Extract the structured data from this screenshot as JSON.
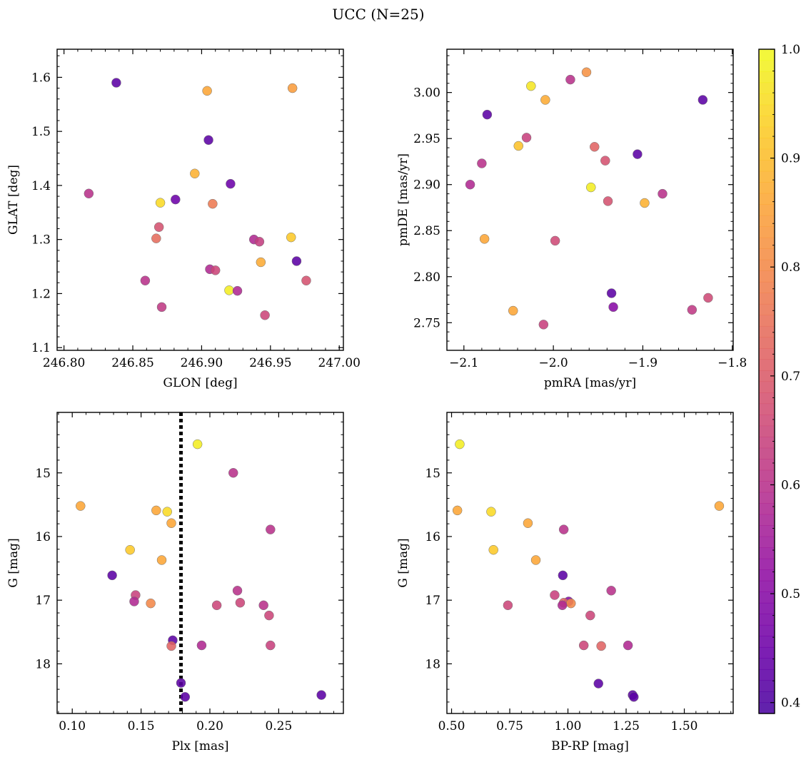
{
  "figure": {
    "title": "UCC (N=25)"
  },
  "chart_data": [
    {
      "type": "scatter",
      "xlabel": "GLON [deg]",
      "ylabel": "GLAT [deg]",
      "xlim": [
        246.795,
        247.003
      ],
      "ylim": [
        1.095,
        1.652
      ],
      "xticks": [
        246.8,
        246.85,
        246.9,
        246.95,
        247.0
      ],
      "xtick_labels": [
        "246.80",
        "246.85",
        "246.90",
        "246.95",
        "247.00"
      ],
      "yticks": [
        1.1,
        1.2,
        1.3,
        1.4,
        1.5,
        1.6
      ],
      "ytick_labels": [
        "1.1",
        "1.2",
        "1.3",
        "1.4",
        "1.5",
        "1.6"
      ],
      "y_inverted": false,
      "points": [
        {
          "x": 246.838,
          "y": 1.59,
          "c": 0.42
        },
        {
          "x": 246.818,
          "y": 1.385,
          "c": 0.6
        },
        {
          "x": 246.87,
          "y": 1.368,
          "c": 0.95
        },
        {
          "x": 246.881,
          "y": 1.374,
          "c": 0.45
        },
        {
          "x": 246.869,
          "y": 1.323,
          "c": 0.68
        },
        {
          "x": 246.867,
          "y": 1.302,
          "c": 0.74
        },
        {
          "x": 246.859,
          "y": 1.224,
          "c": 0.6
        },
        {
          "x": 246.871,
          "y": 1.175,
          "c": 0.62
        },
        {
          "x": 246.895,
          "y": 1.422,
          "c": 0.88
        },
        {
          "x": 246.904,
          "y": 1.575,
          "c": 0.86
        },
        {
          "x": 246.905,
          "y": 1.484,
          "c": 0.42
        },
        {
          "x": 246.921,
          "y": 1.403,
          "c": 0.45
        },
        {
          "x": 246.908,
          "y": 1.366,
          "c": 0.77
        },
        {
          "x": 246.906,
          "y": 1.245,
          "c": 0.58
        },
        {
          "x": 246.91,
          "y": 1.243,
          "c": 0.65
        },
        {
          "x": 246.92,
          "y": 1.206,
          "c": 0.98
        },
        {
          "x": 246.926,
          "y": 1.205,
          "c": 0.58
        },
        {
          "x": 246.938,
          "y": 1.3,
          "c": 0.58
        },
        {
          "x": 246.942,
          "y": 1.296,
          "c": 0.63
        },
        {
          "x": 246.943,
          "y": 1.258,
          "c": 0.87
        },
        {
          "x": 246.946,
          "y": 1.16,
          "c": 0.65
        },
        {
          "x": 246.965,
          "y": 1.304,
          "c": 0.92
        },
        {
          "x": 246.966,
          "y": 1.58,
          "c": 0.84
        },
        {
          "x": 246.969,
          "y": 1.26,
          "c": 0.42
        },
        {
          "x": 246.976,
          "y": 1.224,
          "c": 0.68
        }
      ]
    },
    {
      "type": "scatter",
      "xlabel": "pmRA [mas/yr]",
      "ylabel": "pmDE [mas/yr]",
      "xlim": [
        -2.119,
        -1.799
      ],
      "ylim": [
        2.72,
        3.047
      ],
      "xticks": [
        -2.1,
        -2.0,
        -1.9,
        -1.8
      ],
      "xtick_labels": [
        "−2.1",
        "−2.0",
        "−1.9",
        "−1.8"
      ],
      "yticks": [
        2.75,
        2.8,
        2.85,
        2.9,
        2.95,
        3.0
      ],
      "ytick_labels": [
        "2.75",
        "2.80",
        "2.85",
        "2.90",
        "2.95",
        "3.00"
      ],
      "y_inverted": false,
      "points": [
        {
          "x": -2.025,
          "y": 3.007,
          "c": 0.97
        },
        {
          "x": -2.009,
          "y": 2.992,
          "c": 0.87
        },
        {
          "x": -1.981,
          "y": 3.014,
          "c": 0.6
        },
        {
          "x": -1.963,
          "y": 3.022,
          "c": 0.82
        },
        {
          "x": -1.833,
          "y": 2.992,
          "c": 0.42
        },
        {
          "x": -2.074,
          "y": 2.976,
          "c": 0.42
        },
        {
          "x": -2.03,
          "y": 2.951,
          "c": 0.64
        },
        {
          "x": -2.039,
          "y": 2.942,
          "c": 0.91
        },
        {
          "x": -1.954,
          "y": 2.941,
          "c": 0.72
        },
        {
          "x": -1.906,
          "y": 2.933,
          "c": 0.42
        },
        {
          "x": -1.942,
          "y": 2.926,
          "c": 0.68
        },
        {
          "x": -2.08,
          "y": 2.923,
          "c": 0.6
        },
        {
          "x": -2.093,
          "y": 2.9,
          "c": 0.58
        },
        {
          "x": -1.958,
          "y": 2.897,
          "c": 0.98
        },
        {
          "x": -1.878,
          "y": 2.89,
          "c": 0.6
        },
        {
          "x": -1.939,
          "y": 2.882,
          "c": 0.68
        },
        {
          "x": -1.898,
          "y": 2.88,
          "c": 0.88
        },
        {
          "x": -2.077,
          "y": 2.841,
          "c": 0.86
        },
        {
          "x": -1.998,
          "y": 2.839,
          "c": 0.66
        },
        {
          "x": -1.935,
          "y": 2.782,
          "c": 0.42
        },
        {
          "x": -1.827,
          "y": 2.777,
          "c": 0.66
        },
        {
          "x": -1.933,
          "y": 2.767,
          "c": 0.5
        },
        {
          "x": -1.845,
          "y": 2.764,
          "c": 0.62
        },
        {
          "x": -2.045,
          "y": 2.763,
          "c": 0.86
        },
        {
          "x": -2.011,
          "y": 2.748,
          "c": 0.64
        }
      ]
    },
    {
      "type": "scatter",
      "xlabel": "Plx [mas]",
      "ylabel": "G [mag]",
      "xlim": [
        0.089,
        0.297
      ],
      "ylim": [
        14.05,
        18.78
      ],
      "xticks": [
        0.1,
        0.15,
        0.2,
        0.25
      ],
      "xtick_labels": [
        "0.10",
        "0.15",
        "0.20",
        "0.25"
      ],
      "yticks": [
        15,
        16,
        17,
        18
      ],
      "ytick_labels": [
        "15",
        "16",
        "17",
        "18"
      ],
      "y_inverted": true,
      "vline": {
        "x": 0.179,
        "style": "dotted"
      },
      "points": [
        {
          "x": 0.191,
          "y": 14.55,
          "c": 0.98
        },
        {
          "x": 0.217,
          "y": 15.0,
          "c": 0.6
        },
        {
          "x": 0.106,
          "y": 15.52,
          "c": 0.86
        },
        {
          "x": 0.161,
          "y": 15.59,
          "c": 0.86
        },
        {
          "x": 0.169,
          "y": 15.61,
          "c": 0.95
        },
        {
          "x": 0.172,
          "y": 15.79,
          "c": 0.86
        },
        {
          "x": 0.244,
          "y": 15.89,
          "c": 0.6
        },
        {
          "x": 0.142,
          "y": 16.21,
          "c": 0.92
        },
        {
          "x": 0.165,
          "y": 16.37,
          "c": 0.86
        },
        {
          "x": 0.129,
          "y": 16.61,
          "c": 0.42
        },
        {
          "x": 0.146,
          "y": 16.92,
          "c": 0.64
        },
        {
          "x": 0.145,
          "y": 17.02,
          "c": 0.58
        },
        {
          "x": 0.157,
          "y": 17.05,
          "c": 0.8
        },
        {
          "x": 0.22,
          "y": 16.85,
          "c": 0.6
        },
        {
          "x": 0.222,
          "y": 17.04,
          "c": 0.65
        },
        {
          "x": 0.205,
          "y": 17.08,
          "c": 0.65
        },
        {
          "x": 0.239,
          "y": 17.08,
          "c": 0.6
        },
        {
          "x": 0.243,
          "y": 17.24,
          "c": 0.65
        },
        {
          "x": 0.173,
          "y": 17.63,
          "c": 0.42
        },
        {
          "x": 0.172,
          "y": 17.72,
          "c": 0.72
        },
        {
          "x": 0.194,
          "y": 17.71,
          "c": 0.58
        },
        {
          "x": 0.244,
          "y": 17.71,
          "c": 0.64
        },
        {
          "x": 0.179,
          "y": 18.3,
          "c": 0.42
        },
        {
          "x": 0.182,
          "y": 18.52,
          "c": 0.42
        },
        {
          "x": 0.281,
          "y": 18.49,
          "c": 0.42
        }
      ]
    },
    {
      "type": "scatter",
      "xlabel": "BP-RP [mag]",
      "ylabel": "G [mag]",
      "xlim": [
        0.48,
        1.71
      ],
      "ylim": [
        14.05,
        18.78
      ],
      "xticks": [
        0.5,
        0.75,
        1.0,
        1.25,
        1.5
      ],
      "xtick_labels": [
        "0.50",
        "0.75",
        "1.00",
        "1.25",
        "1.50"
      ],
      "yticks": [
        15,
        16,
        17,
        18
      ],
      "ytick_labels": [
        "15",
        "16",
        "17",
        "18"
      ],
      "y_inverted": true,
      "points": [
        {
          "x": 0.535,
          "y": 14.55,
          "c": 0.98
        },
        {
          "x": 1.65,
          "y": 15.52,
          "c": 0.86
        },
        {
          "x": 0.525,
          "y": 15.59,
          "c": 0.86
        },
        {
          "x": 0.67,
          "y": 15.61,
          "c": 0.95
        },
        {
          "x": 0.828,
          "y": 15.79,
          "c": 0.86
        },
        {
          "x": 0.982,
          "y": 15.89,
          "c": 0.6
        },
        {
          "x": 0.68,
          "y": 16.21,
          "c": 0.92
        },
        {
          "x": 0.862,
          "y": 16.37,
          "c": 0.86
        },
        {
          "x": 0.978,
          "y": 16.61,
          "c": 0.42
        },
        {
          "x": 1.186,
          "y": 16.85,
          "c": 0.6
        },
        {
          "x": 0.943,
          "y": 16.92,
          "c": 0.64
        },
        {
          "x": 1.003,
          "y": 17.02,
          "c": 0.5
        },
        {
          "x": 0.982,
          "y": 17.04,
          "c": 0.72
        },
        {
          "x": 1.013,
          "y": 17.05,
          "c": 0.8
        },
        {
          "x": 0.976,
          "y": 17.08,
          "c": 0.58
        },
        {
          "x": 0.742,
          "y": 17.08,
          "c": 0.65
        },
        {
          "x": 1.096,
          "y": 17.24,
          "c": 0.65
        },
        {
          "x": 1.068,
          "y": 17.71,
          "c": 0.65
        },
        {
          "x": 1.143,
          "y": 17.72,
          "c": 0.72
        },
        {
          "x": 1.258,
          "y": 17.71,
          "c": 0.58
        },
        {
          "x": 1.131,
          "y": 18.31,
          "c": 0.42
        },
        {
          "x": 1.278,
          "y": 18.49,
          "c": 0.42
        },
        {
          "x": 1.283,
          "y": 18.52,
          "c": 0.42
        }
      ]
    }
  ],
  "colorbar": {
    "colormap": "plasma",
    "vmin": 0.39,
    "vmax": 1.0,
    "ticks": [
      0.4,
      0.5,
      0.6,
      0.7,
      0.8,
      0.9,
      1.0
    ],
    "tick_labels": [
      "0.4",
      "0.5",
      "0.6",
      "0.7",
      "0.8",
      "0.9",
      "1.0"
    ]
  }
}
